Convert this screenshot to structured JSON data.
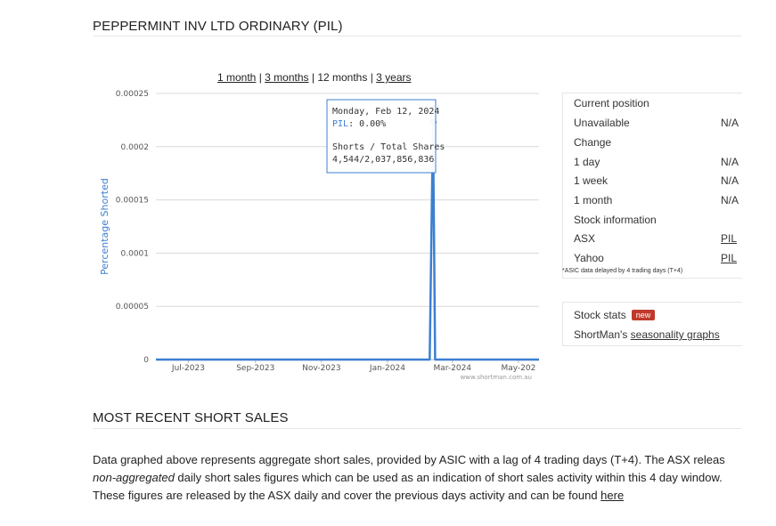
{
  "header": {
    "title": "PEPPERMINT INV LTD ORDINARY (PIL)"
  },
  "range_selector": {
    "items": [
      "1 month",
      "3 months",
      "12 months",
      "3 years"
    ],
    "active": "12 months",
    "separator": " | "
  },
  "chart_data": {
    "type": "line",
    "ylabel": "Percentage Shorted",
    "y_ticks": [
      "0.00025",
      "0.0002",
      "0.00015",
      "0.0001",
      "0.00005",
      "0"
    ],
    "ylim": [
      0,
      0.00025
    ],
    "x_ticks": [
      "Jul-2023",
      "Sep-2023",
      "Nov-2023",
      "Jan-2024",
      "Mar-2024",
      "May-202"
    ],
    "x_tick_dates": [
      "2023-07-01",
      "2023-09-01",
      "2023-11-01",
      "2024-01-01",
      "2024-03-01",
      "2024-05-01"
    ],
    "xlim": [
      "2023-06-01",
      "2024-05-20"
    ],
    "grid": true,
    "series": [
      {
        "name": "PIL",
        "color": "#3d7fd1",
        "points": [
          [
            "2023-06-01",
            0
          ],
          [
            "2024-02-09",
            0
          ],
          [
            "2024-02-12",
            0.000223
          ],
          [
            "2024-02-14",
            0
          ],
          [
            "2024-05-20",
            0
          ]
        ]
      }
    ],
    "credit": "www.shortman.com.au",
    "tooltip": {
      "date": "Monday, Feb 12, 2024",
      "series_label": "PIL",
      "series_value": ": 0.00%",
      "line1": "Shorts / Total Shares",
      "line2": "4,544/2,037,856,836"
    }
  },
  "sidebar": {
    "position_title": "Current position",
    "position_rows": [
      {
        "label": "Unavailable",
        "value": "N/A"
      }
    ],
    "change_title": "Change",
    "change_rows": [
      {
        "label": "1 day",
        "value": "N/A"
      },
      {
        "label": "1 week",
        "value": "N/A"
      },
      {
        "label": "1 month",
        "value": "N/A"
      }
    ],
    "info_title": "Stock information",
    "info_rows": [
      {
        "label": "ASX",
        "value": "PIL"
      },
      {
        "label": "Yahoo",
        "value": "PIL"
      }
    ],
    "note": "*ASIC data delayed by 4 trading days (T+4)",
    "stats_label": "Stock stats",
    "stats_badge": "new",
    "seasonality_prefix": "ShortMan's ",
    "seasonality_link": "seasonality graphs"
  },
  "recent": {
    "title": "MOST RECENT SHORT SALES",
    "line1": "Data graphed above represents aggregate short sales, provided by ASIC with a lag of 4 trading days (T+4). The ASX releas",
    "line2_em": "non-aggregated",
    "line2_rest": " daily short sales figures which can be used as an indication of short sales activity within this 4 day window.",
    "line3": "These figures are released by the ASX daily and cover the previous days activity and can be found ",
    "line3_link": "here"
  }
}
